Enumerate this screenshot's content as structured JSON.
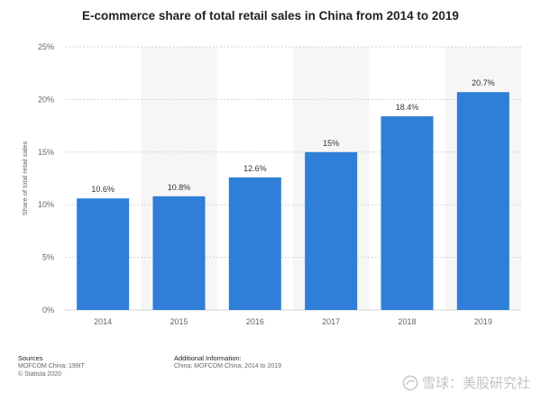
{
  "chart_data": {
    "type": "bar",
    "title": "E-commerce share of total retail sales in China from 2014 to 2019",
    "xlabel": "",
    "ylabel": "Share of total retail sales",
    "categories": [
      "2014",
      "2015",
      "2016",
      "2017",
      "2018",
      "2019"
    ],
    "values": [
      10.6,
      10.8,
      12.6,
      15,
      18.4,
      20.7
    ],
    "data_labels": [
      "10.6%",
      "10.8%",
      "12.6%",
      "15%",
      "18.4%",
      "20.7%"
    ],
    "ylim": [
      0,
      25
    ],
    "yticks": [
      0,
      5,
      10,
      15,
      20,
      25
    ],
    "ytick_labels": [
      "0%",
      "5%",
      "10%",
      "15%",
      "20%",
      "25%"
    ],
    "bar_color": "#2f7ed8",
    "band_color": "#f6f6f6",
    "grid": true
  },
  "footer": {
    "sources_heading": "Sources",
    "sources_lines": [
      "MOFCOM China; 199IT",
      "© Statista 2020"
    ],
    "additional_heading": "Additional Information:",
    "additional_lines": [
      "China; MOFCOM China; 2014 to 2019"
    ]
  },
  "watermark": {
    "text": "雪球：美股研究社"
  }
}
